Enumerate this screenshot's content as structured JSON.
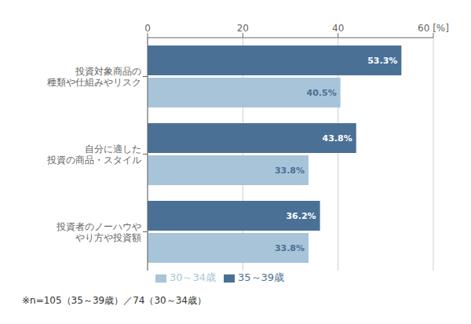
{
  "chart_data": {
    "type": "bar",
    "orientation": "horizontal",
    "categories": [
      "投資対象商品の\n種類や仕組みやリスク",
      "自分に適した\n投資の商品・スタイル",
      "投資者のノーハウや\nやり方や投資額"
    ],
    "series": [
      {
        "name": "35～39歳",
        "color": "#4a7096",
        "values": [
          53.3,
          43.8,
          36.2
        ],
        "value_labels": [
          "53.3%",
          "43.8%",
          "36.2%"
        ]
      },
      {
        "name": "30～34歳",
        "color": "#a8c4d8",
        "values": [
          40.5,
          33.8,
          33.8
        ],
        "value_labels": [
          "40.5%",
          "33.8%",
          "33.8%"
        ]
      }
    ],
    "xlim": [
      0,
      60
    ],
    "xticks": [
      0,
      20,
      40,
      {
        "value": 60,
        "label": "60 [%]"
      }
    ],
    "grid": true,
    "data_labels": true,
    "legend": "bottom",
    "annotations": [
      "※n=105（35～39歳）／74（30～34歳）"
    ]
  }
}
